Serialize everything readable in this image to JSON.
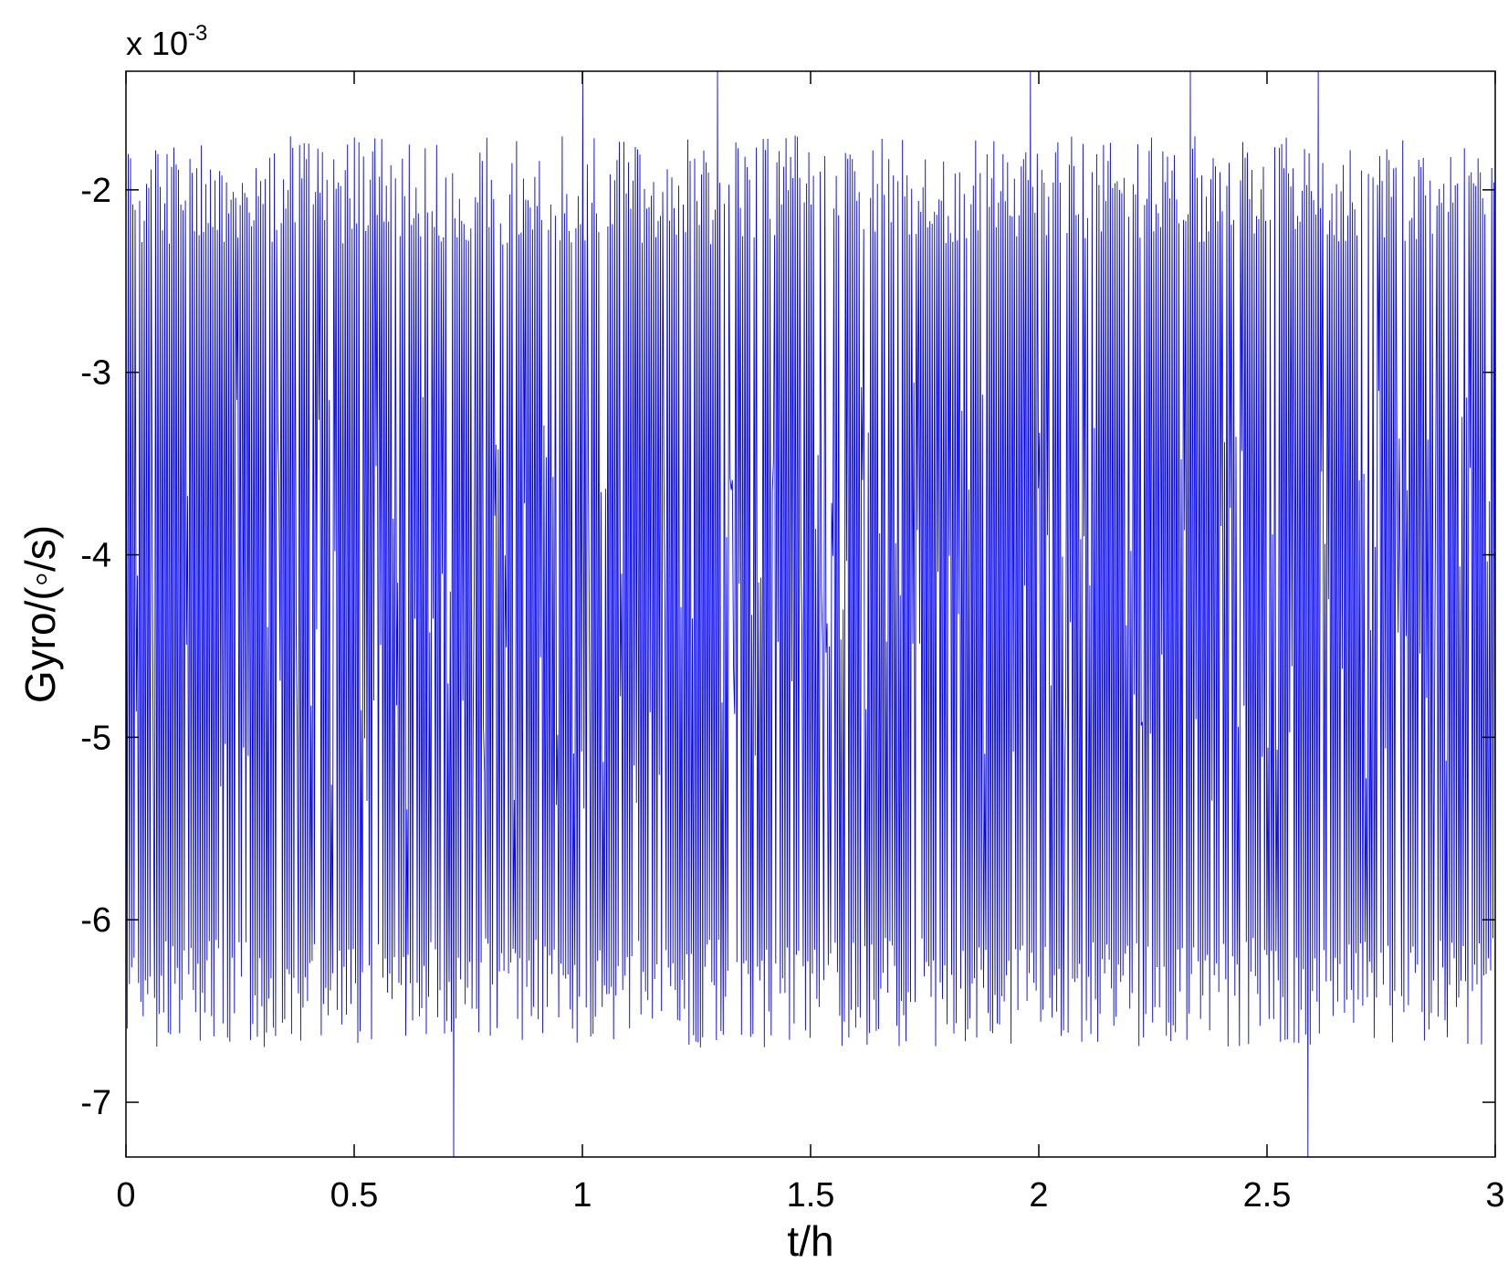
{
  "chart_data": {
    "type": "line",
    "xlabel": "t/h",
    "ylabel": "Gyro/(◦/s)",
    "exponent": {
      "base": "x 10",
      "power": "-3"
    },
    "xlim": [
      0,
      3
    ],
    "ylim": [
      -7.3,
      -1.35
    ],
    "xticks": [
      0,
      0.5,
      1,
      1.5,
      2,
      2.5,
      3
    ],
    "xtick_labels": [
      "0",
      "0.5",
      "1",
      "1.5",
      "2",
      "2.5",
      "3"
    ],
    "yticks": [
      -7,
      -6,
      -5,
      -4,
      -3,
      -2
    ],
    "ytick_labels": [
      "-7",
      "-6",
      "-5",
      "-4",
      "-3",
      "-2"
    ],
    "grid": false,
    "series": [
      {
        "color": "#0000ff",
        "sample_count": 1200,
        "mean": -4.2,
        "typical_max": -2.0,
        "typical_min": -6.4,
        "peak_max": -1.35,
        "peak_min": -7.3,
        "note_pattern": "dense oscillating noise between about -2.0 and -6.4 with occasional spikes"
      }
    ]
  }
}
